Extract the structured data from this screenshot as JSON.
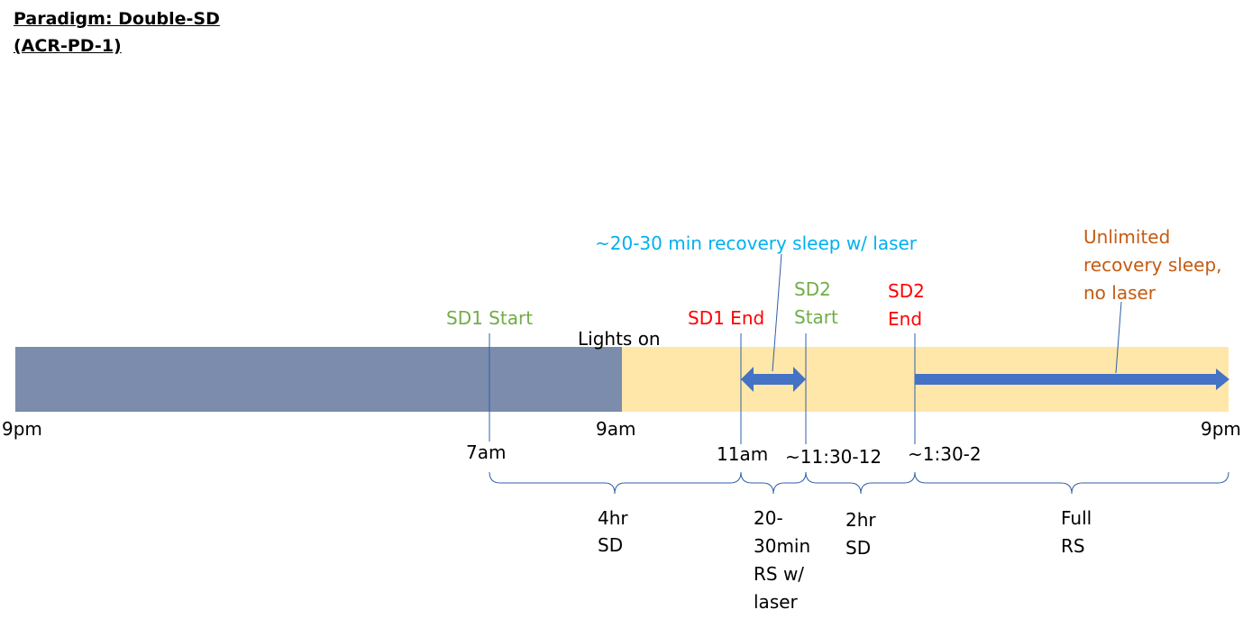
{
  "title": {
    "line1": "Paradigm: Double-SD",
    "line2": "(ACR-PD-1)"
  },
  "colors": {
    "dark_period": "#7b8cad",
    "light_period": "#ffe7a9",
    "arrow": "#4472c4",
    "line": "#2e5fa8",
    "sd_start": "#70ad47",
    "sd_end": "#ff0000",
    "laser_note": "#00b0f0",
    "unlimited_note": "#c55a11"
  },
  "events": {
    "sd1_start": "SD1 Start",
    "lights_on": "Lights on",
    "sd1_end": "SD1 End",
    "sd2_start_line1": "SD2",
    "sd2_start_line2": "Start",
    "sd2_end_line1": "SD2",
    "sd2_end_line2": "End"
  },
  "notes": {
    "laser_recovery": "~20-30 min recovery sleep w/ laser",
    "unlimited_line1": "Unlimited",
    "unlimited_line2": "recovery sleep,",
    "unlimited_line3": "no laser"
  },
  "times": {
    "t_9pm_start": "9pm",
    "t_9am": "9am",
    "t_9pm_end": "9pm",
    "t_7am": "7am",
    "t_11am": "11am",
    "t_1130_12": "~11:30-12",
    "t_130_2": "~1:30-2"
  },
  "durations": {
    "sd1_line1": "4hr",
    "sd1_line2": "SD",
    "rs_line1": "20-",
    "rs_line2": "30min",
    "rs_line3": "RS w/",
    "rs_line4": "laser",
    "sd2_line1": "2hr",
    "sd2_line2": "SD",
    "full_line1": "Full",
    "full_line2": "RS"
  }
}
